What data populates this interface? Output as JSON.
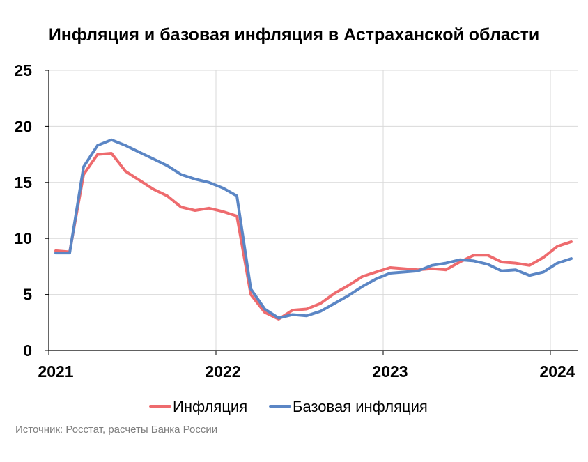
{
  "chart_data": {
    "type": "line",
    "title": "Инфляция и базовая инфляция в Астраханской области",
    "xlabel": "",
    "ylabel": "",
    "ylim": [
      0,
      25
    ],
    "yticks": [
      "0",
      "5",
      "10",
      "15",
      "20",
      "25"
    ],
    "xticks": [
      "2021",
      "2022",
      "2023",
      "2024"
    ],
    "grid": true,
    "legend_position": "bottom",
    "source": "Источник: Росстат, расчеты Банка России",
    "x": [
      "2021-01",
      "2021-02",
      "2021-03",
      "2021-04",
      "2021-05",
      "2021-06",
      "2021-07",
      "2021-08",
      "2021-09",
      "2021-10",
      "2021-11",
      "2021-12",
      "2022-01",
      "2022-02",
      "2022-03",
      "2022-04",
      "2022-05",
      "2022-06",
      "2022-07",
      "2022-08",
      "2022-09",
      "2022-10",
      "2022-11",
      "2022-12",
      "2023-01",
      "2023-02",
      "2023-03",
      "2023-04",
      "2023-05",
      "2023-06",
      "2023-07",
      "2023-08",
      "2023-09",
      "2023-10",
      "2023-11",
      "2023-12",
      "2024-01",
      "2024-02"
    ],
    "series": [
      {
        "name": "Инфляция",
        "color": "#ee6b6e",
        "values": [
          8.9,
          8.8,
          15.7,
          17.5,
          17.6,
          16.0,
          15.2,
          14.4,
          13.8,
          12.8,
          12.5,
          12.7,
          12.4,
          12.0,
          5.0,
          3.4,
          2.8,
          3.6,
          3.7,
          4.2,
          5.1,
          5.8,
          6.6,
          7.0,
          7.4,
          7.3,
          7.2,
          7.3,
          7.2,
          7.9,
          8.5,
          8.5,
          7.9,
          7.8,
          7.6,
          8.3,
          9.3,
          9.7
        ]
      },
      {
        "name": "Базовая инфляция",
        "color": "#5b86c5",
        "values": [
          8.7,
          8.7,
          16.4,
          18.3,
          18.8,
          18.3,
          17.7,
          17.1,
          16.5,
          15.7,
          15.3,
          15.0,
          14.5,
          13.8,
          5.5,
          3.7,
          2.9,
          3.2,
          3.1,
          3.5,
          4.2,
          4.9,
          5.7,
          6.4,
          6.9,
          7.0,
          7.1,
          7.6,
          7.8,
          8.1,
          8.0,
          7.7,
          7.1,
          7.2,
          6.7,
          7.0,
          7.8,
          8.2
        ]
      }
    ]
  }
}
